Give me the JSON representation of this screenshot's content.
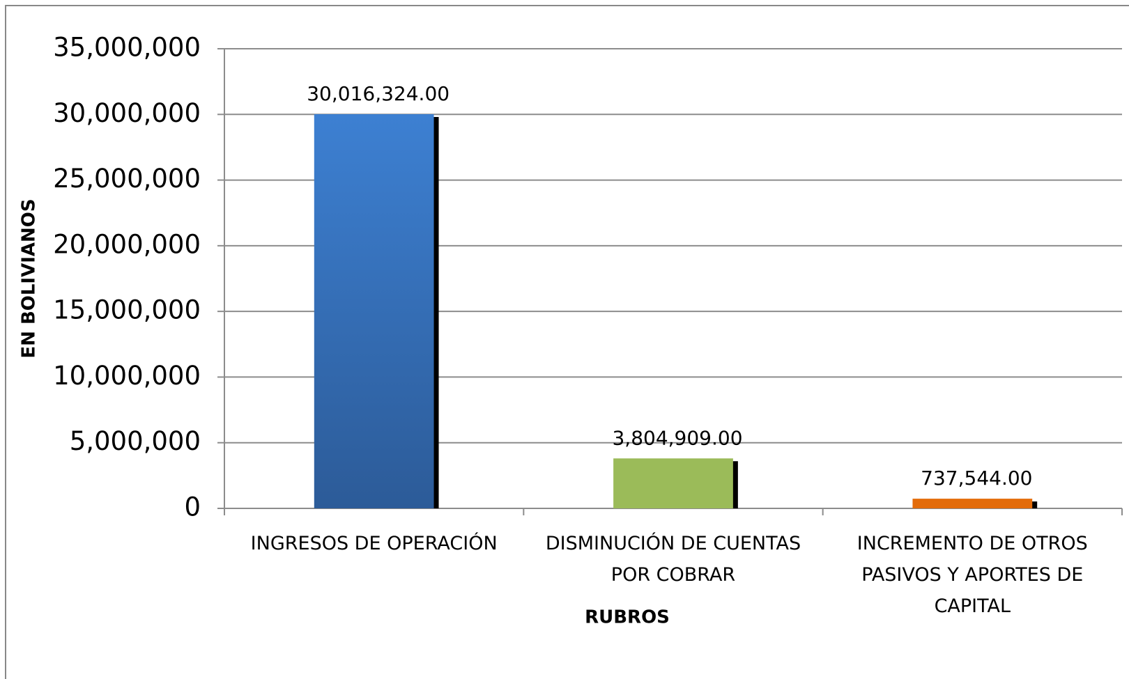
{
  "chart_data": {
    "type": "bar",
    "y_axis_label": "EN BOLIVIANOS",
    "x_axis_label": "RUBROS",
    "categories": [
      "INGRESOS DE OPERACIÓN",
      "DISMINUCIÓN DE CUENTAS POR COBRAR",
      "INCREMENTO DE OTROS PASIVOS Y APORTES DE CAPITAL"
    ],
    "values": [
      30016324,
      3804909,
      737544
    ],
    "value_labels": [
      "30,016,324.00",
      "3,804,909.00",
      "737,544.00"
    ],
    "colors": [
      "#3b7dd0",
      "#9bbb59",
      "#e36c0a"
    ],
    "ylim": [
      0,
      35000000
    ],
    "yticks": [
      0,
      {
        "value": 5000000,
        "label": "5,000,000"
      },
      {
        "value": 10000000,
        "label": "10,000,000"
      },
      {
        "value": 15000000,
        "label": "15,000,000"
      },
      {
        "value": 20000000,
        "label": "20,000,000"
      },
      {
        "value": 25000000,
        "label": "25,000,000"
      },
      {
        "value": 30000000,
        "label": "30,000,000"
      },
      {
        "value": 35000000,
        "label": "35,000,000"
      }
    ],
    "grid": true
  }
}
